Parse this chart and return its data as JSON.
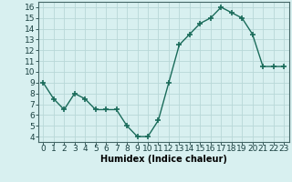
{
  "x": [
    0,
    1,
    2,
    3,
    4,
    5,
    6,
    7,
    8,
    9,
    10,
    11,
    12,
    13,
    14,
    15,
    16,
    17,
    18,
    19,
    20,
    21,
    22,
    23
  ],
  "y": [
    9,
    7.5,
    6.5,
    8,
    7.5,
    6.5,
    6.5,
    6.5,
    5,
    4,
    4,
    5.5,
    9,
    12.5,
    13.5,
    14.5,
    15,
    16,
    15.5,
    15,
    13.5,
    10.5,
    10.5,
    10.5
  ],
  "line_color": "#1a6b5a",
  "marker": "+",
  "marker_size": 4,
  "bg_color": "#d8f0f0",
  "grid_color": "#b8d8d8",
  "xlabel": "Humidex (Indice chaleur)",
  "xlim": [
    -0.5,
    23.5
  ],
  "ylim": [
    3.5,
    16.5
  ],
  "yticks": [
    4,
    5,
    6,
    7,
    8,
    9,
    10,
    11,
    12,
    13,
    14,
    15,
    16
  ],
  "xticks": [
    0,
    1,
    2,
    3,
    4,
    5,
    6,
    7,
    8,
    9,
    10,
    11,
    12,
    13,
    14,
    15,
    16,
    17,
    18,
    19,
    20,
    21,
    22,
    23
  ],
  "xlabel_fontsize": 7,
  "tick_fontsize": 6.5,
  "linewidth": 1.0,
  "marker_linewidth": 1.2
}
